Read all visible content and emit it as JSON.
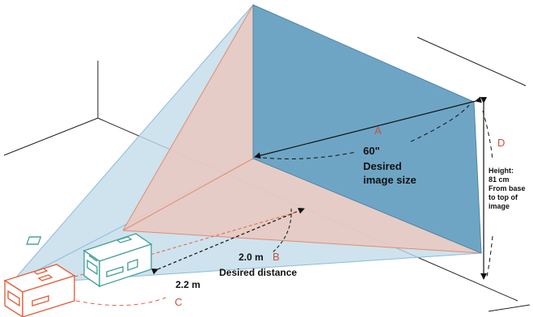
{
  "labels": {
    "a": "A",
    "b": "B",
    "c": "C",
    "d": "D",
    "size_value": "60\"",
    "size_text_1": "Desired",
    "size_text_2": "image size",
    "distance_value": "2.0 m",
    "distance_text": "Desired distance",
    "alt_distance_value": "2.2 m",
    "height_1": "Height:",
    "height_2": "81 cm",
    "height_3": "From base",
    "height_4": "to top of",
    "height_5": "image"
  },
  "colors": {
    "screen_fill": "#6fa5c4",
    "blue_beam": "#c2dcea",
    "pink_beam": "#e9c9c1",
    "projector_teal": "#4aa39b",
    "projector_orange": "#e2623f",
    "label_red": "#c8503c"
  }
}
